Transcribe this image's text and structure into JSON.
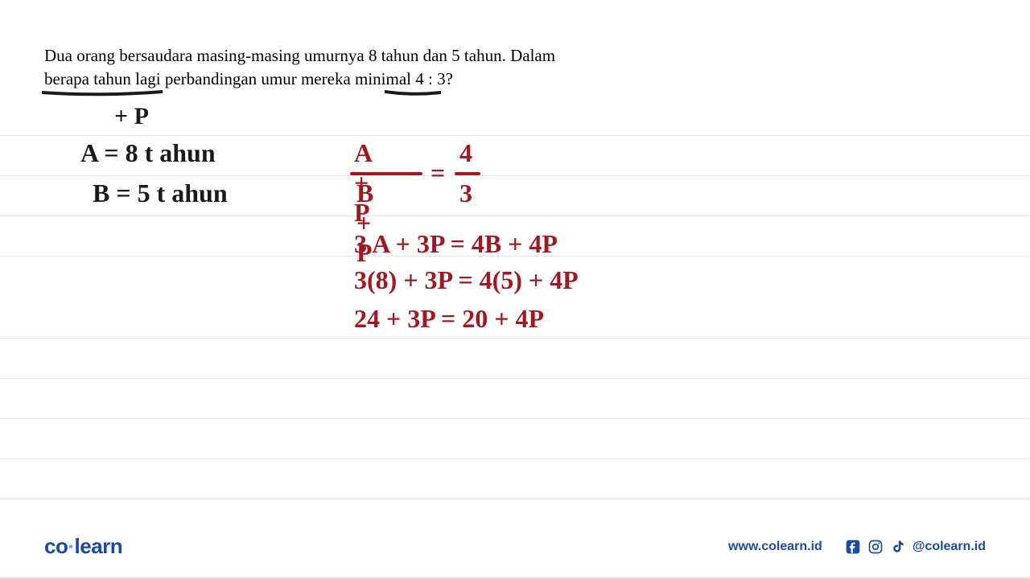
{
  "ruled_line_positions": [
    168,
    218,
    268,
    318,
    420,
    470,
    520,
    570,
    620
  ],
  "question": {
    "line1": "Dua orang bersaudara masing-masing umurnya 8 tahun dan 5 tahun. Dalam",
    "line2": "berapa tahun lagi perbandingan umur mereka minimal 4 : 3?"
  },
  "handwriting": {
    "plus_p": "+ P",
    "line_a": "A  =  8  t ahun",
    "line_b": "B =  5  t ahun",
    "fraction": {
      "top_left": "A + P",
      "bot_left": "B + P",
      "eq": "=",
      "top_right": "4",
      "bot_right": "3"
    },
    "eq_line1": "3 A +  3P  =  4B  +  4P",
    "eq_line2": "3(8) +  3P =  4(5) +  4P",
    "eq_line3": "24  +  3P =  20   +  4P"
  },
  "footer": {
    "logo_left": "co",
    "logo_right": "learn",
    "website": "www.colearn.id",
    "handle": "@colearn.id"
  },
  "colors": {
    "ruled": "#e5e5e5",
    "black_ink": "#1a1a1a",
    "red_ink": "#a01820",
    "logo": "#1a4ba0",
    "logo_dot": "#4aa3df"
  }
}
